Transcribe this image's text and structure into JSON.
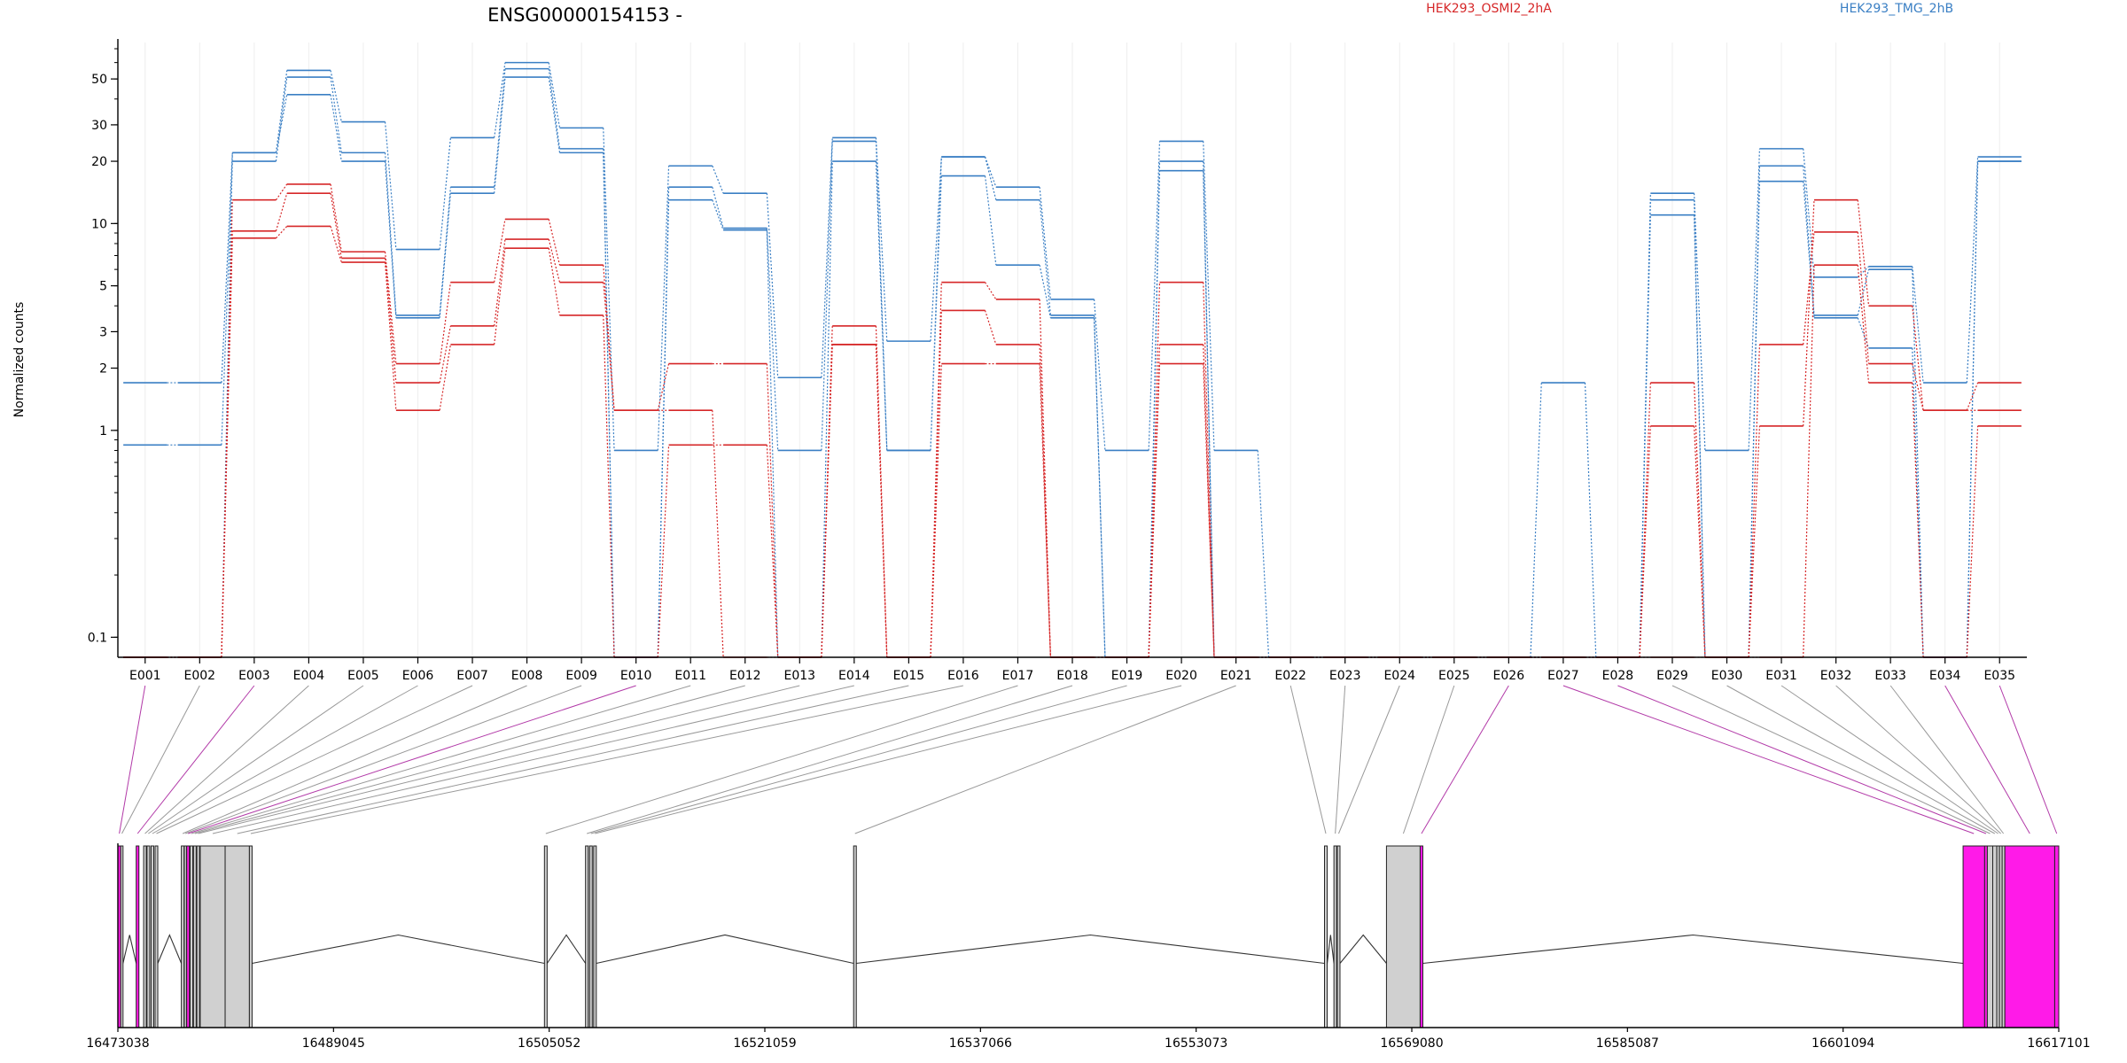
{
  "figure": {
    "title": "ENSG00000154153 -",
    "ylabel": "Normalized counts",
    "legend": [
      {
        "name": "HEK293_OSMI2_2hA",
        "color": "#d62728"
      },
      {
        "name": "HEK293_TMG_2hB",
        "color": "#3a7fc4"
      }
    ]
  },
  "chart_data": [
    {
      "type": "line",
      "title": "ENSG00000154153 -",
      "ylabel": "Normalized counts",
      "yscale": "log",
      "ylim": [
        0.08,
        75
      ],
      "yticks": [
        {
          "value": 0.1,
          "label": "0.1"
        },
        {
          "value": 1,
          "label": "1"
        },
        {
          "value": 2,
          "label": "2"
        },
        {
          "value": 3,
          "label": "3"
        },
        {
          "value": 5,
          "label": "5"
        },
        {
          "value": 10,
          "label": "10"
        },
        {
          "value": 20,
          "label": "20"
        },
        {
          "value": 30,
          "label": "30"
        },
        {
          "value": 50,
          "label": "50"
        }
      ],
      "categories": [
        "E001",
        "E002",
        "E003",
        "E004",
        "E005",
        "E006",
        "E007",
        "E008",
        "E009",
        "E010",
        "E011",
        "E012",
        "E013",
        "E014",
        "E015",
        "E016",
        "E017",
        "E018",
        "E019",
        "E020",
        "E021",
        "E022",
        "E023",
        "E024",
        "E025",
        "E026",
        "E027",
        "E028",
        "E029",
        "E030",
        "E031",
        "E032",
        "E033",
        "E034",
        "E035"
      ],
      "grid": true,
      "series": [
        {
          "group": "HEK293_TMG_2hB",
          "color": "#3a7fc4",
          "values": [
            1.7,
            1.7,
            22,
            55,
            31,
            7.5,
            26,
            60,
            29,
            0.8,
            19,
            14,
            1.8,
            26,
            2.7,
            21,
            15,
            4.3,
            0.8,
            25,
            0.8,
            0.08,
            0.08,
            0.08,
            0.08,
            0.08,
            1.7,
            0.08,
            14,
            0.8,
            23,
            5.5,
            6.2,
            1.7,
            21
          ]
        },
        {
          "group": "HEK293_TMG_2hB",
          "color": "#3a7fc4",
          "values": [
            0.85,
            0.85,
            20,
            51,
            22,
            3.6,
            15,
            56,
            23,
            0.08,
            15,
            9.5,
            0.8,
            25,
            0.8,
            21,
            13,
            3.6,
            0.08,
            20,
            0.08,
            0.08,
            0.08,
            0.08,
            0.08,
            0.08,
            0.08,
            0.08,
            13,
            0.08,
            19,
            3.6,
            6.0,
            0.08,
            20
          ]
        },
        {
          "group": "HEK293_TMG_2hB",
          "color": "#3a7fc4",
          "values": [
            0.08,
            0.08,
            22,
            42,
            20,
            3.5,
            14,
            51,
            22,
            0.08,
            13,
            9.3,
            0.08,
            20,
            0.8,
            17,
            6.3,
            3.5,
            0.08,
            18,
            0.08,
            0.08,
            0.08,
            0.08,
            0.08,
            0.08,
            0.08,
            0.08,
            11,
            0.08,
            16,
            3.5,
            2.5,
            0.08,
            20
          ]
        },
        {
          "group": "HEK293_OSMI2_2hA",
          "color": "#d62728",
          "values": [
            0.08,
            0.08,
            13,
            15.5,
            7.3,
            2.1,
            5.2,
            10.5,
            6.3,
            1.25,
            1.25,
            0.08,
            0.08,
            3.2,
            0.08,
            5.2,
            4.3,
            0.08,
            0.08,
            5.2,
            0.08,
            0.08,
            0.08,
            0.08,
            0.08,
            0.08,
            0.08,
            0.08,
            1.7,
            0.08,
            1.05,
            13,
            4.0,
            1.25,
            1.7
          ]
        },
        {
          "group": "HEK293_OSMI2_2hA",
          "color": "#d62728",
          "values": [
            0.08,
            0.08,
            9.2,
            14,
            6.8,
            1.7,
            3.2,
            8.4,
            5.2,
            1.25,
            2.1,
            2.1,
            0.08,
            2.6,
            0.08,
            3.8,
            2.6,
            0.08,
            0.08,
            2.6,
            0.08,
            0.08,
            0.08,
            0.08,
            0.08,
            0.08,
            0.08,
            0.08,
            1.05,
            0.08,
            2.6,
            9.1,
            2.1,
            1.25,
            1.25
          ]
        },
        {
          "group": "HEK293_OSMI2_2hA",
          "color": "#d62728",
          "values": [
            0.08,
            0.08,
            8.5,
            9.7,
            6.5,
            1.25,
            2.6,
            7.6,
            3.6,
            0.08,
            0.85,
            0.85,
            0.08,
            2.6,
            0.08,
            2.1,
            2.1,
            0.08,
            0.08,
            2.1,
            0.08,
            0.08,
            0.08,
            0.08,
            0.08,
            0.08,
            0.08,
            0.08,
            0.08,
            0.08,
            0.08,
            6.3,
            1.7,
            0.08,
            1.05
          ]
        }
      ]
    },
    {
      "type": "gene-model",
      "xlim": [
        16473038,
        16617101
      ],
      "xticks": [
        "16473038",
        "16489045",
        "16505052",
        "16521059",
        "16537066",
        "16553073",
        "16569080",
        "16585087",
        "16601094",
        "16617101"
      ],
      "exons": [
        {
          "id": "E001",
          "start": 16473038,
          "end": 16473250,
          "highlight": true
        },
        {
          "id": "E002",
          "start": 16473250,
          "end": 16473420,
          "highlight": false
        },
        {
          "id": "E003",
          "start": 16474400,
          "end": 16474600,
          "highlight": true
        },
        {
          "id": "E004",
          "start": 16474950,
          "end": 16475150,
          "highlight": false
        },
        {
          "id": "E005",
          "start": 16475200,
          "end": 16475400,
          "highlight": false
        },
        {
          "id": "E006",
          "start": 16475500,
          "end": 16475700,
          "highlight": false
        },
        {
          "id": "E007",
          "start": 16475800,
          "end": 16476000,
          "highlight": false
        },
        {
          "id": "E008",
          "start": 16477750,
          "end": 16477950,
          "highlight": false
        },
        {
          "id": "E009",
          "start": 16477970,
          "end": 16478130,
          "highlight": false
        },
        {
          "id": "E010",
          "start": 16478150,
          "end": 16478350,
          "highlight": true
        },
        {
          "id": "E011",
          "start": 16478400,
          "end": 16478600,
          "highlight": false
        },
        {
          "id": "E012",
          "start": 16478650,
          "end": 16478850,
          "highlight": false
        },
        {
          "id": "E013",
          "start": 16478900,
          "end": 16479100,
          "highlight": false
        },
        {
          "id": "E014",
          "start": 16479150,
          "end": 16481000,
          "highlight": false
        },
        {
          "id": "E015",
          "start": 16481000,
          "end": 16482800,
          "highlight": false
        },
        {
          "id": "E016",
          "start": 16482800,
          "end": 16483000,
          "highlight": false
        },
        {
          "id": "E017",
          "start": 16504700,
          "end": 16504900,
          "highlight": false
        },
        {
          "id": "E018",
          "start": 16507750,
          "end": 16507950,
          "highlight": false
        },
        {
          "id": "E019",
          "start": 16508050,
          "end": 16508250,
          "highlight": false
        },
        {
          "id": "E020",
          "start": 16508350,
          "end": 16508550,
          "highlight": false
        },
        {
          "id": "E021",
          "start": 16527650,
          "end": 16527850,
          "highlight": false
        },
        {
          "id": "E022",
          "start": 16562600,
          "end": 16562800,
          "highlight": false
        },
        {
          "id": "E023",
          "start": 16563300,
          "end": 16563500,
          "highlight": false
        },
        {
          "id": "E024",
          "start": 16563550,
          "end": 16563750,
          "highlight": false
        },
        {
          "id": "E025",
          "start": 16567200,
          "end": 16569700,
          "highlight": false
        },
        {
          "id": "E026",
          "start": 16569700,
          "end": 16569900,
          "highlight": true
        },
        {
          "id": "E027",
          "start": 16610000,
          "end": 16611600,
          "highlight": true
        },
        {
          "id": "E028",
          "start": 16611600,
          "end": 16611800,
          "highlight": true
        },
        {
          "id": "E029",
          "start": 16611800,
          "end": 16612200,
          "highlight": false
        },
        {
          "id": "E030",
          "start": 16612200,
          "end": 16612500,
          "highlight": false
        },
        {
          "id": "E031",
          "start": 16612500,
          "end": 16612700,
          "highlight": false
        },
        {
          "id": "E032",
          "start": 16612700,
          "end": 16612900,
          "highlight": false
        },
        {
          "id": "E033",
          "start": 16612900,
          "end": 16613100,
          "highlight": false
        },
        {
          "id": "E034",
          "start": 16613100,
          "end": 16616800,
          "highlight": true
        },
        {
          "id": "E035",
          "start": 16616800,
          "end": 16617101,
          "highlight": true
        }
      ]
    }
  ]
}
